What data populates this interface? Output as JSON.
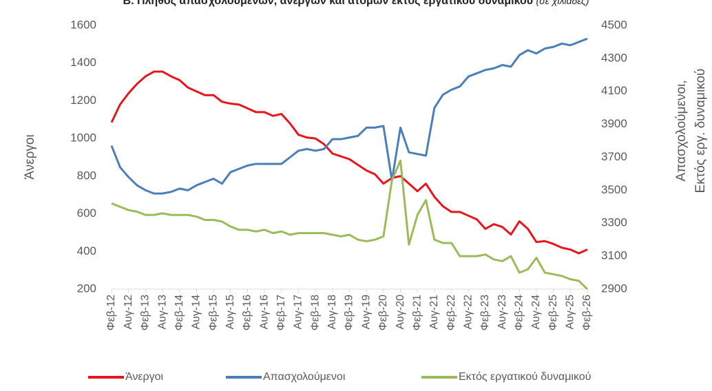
{
  "chart_data": {
    "type": "line",
    "title": "Β. Πλήθος απασχολούμενων, ανέργων και ατόμων εκτός εργατικού δυναμικού",
    "subtitle": "(σε χιλιάδες)",
    "ylabel": "Άνεργοι",
    "y2label": [
      "Απασχολούμενοι,",
      "Εκτός εργ. δυναμικού"
    ],
    "categories": [
      "Φεβ-12",
      null,
      "Αυγ-12",
      null,
      "Φεβ-13",
      null,
      "Αυγ-13",
      null,
      "Φεβ-14",
      null,
      "Αυγ-14",
      null,
      "Φεβ-15",
      null,
      "Αυγ-15",
      null,
      "Φεβ-16",
      null,
      "Αυγ-16",
      null,
      "Φεβ-17",
      null,
      "Αυγ-17",
      null,
      "Φεβ-18",
      null,
      "Αυγ-18",
      null,
      "Φεβ-19",
      null,
      "Αυγ-19",
      null,
      "Φεβ-20",
      null,
      "Αυγ-20",
      null,
      "Φεβ-21",
      null,
      "Αυγ-21",
      null,
      "Φεβ-22",
      null,
      "Αυγ-22",
      null,
      "Φεβ-23",
      null,
      "Αυγ-23",
      null,
      "Φεβ-24",
      null,
      "Αυγ-24",
      null,
      "Φεβ-25",
      null,
      "Αυγ-25",
      null,
      "Φεβ-26"
    ],
    "series": [
      {
        "name": "Άνεργοι",
        "color": "#e8141b",
        "axis": "y",
        "values": [
          1085,
          1180,
          1240,
          1290,
          1330,
          1355,
          1355,
          1330,
          1310,
          1270,
          1250,
          1230,
          1230,
          1195,
          1185,
          1180,
          1160,
          1140,
          1140,
          1120,
          1130,
          1080,
          1020,
          1005,
          1000,
          970,
          920,
          905,
          890,
          860,
          830,
          810,
          760,
          790,
          800,
          760,
          720,
          760,
          690,
          640,
          610,
          610,
          590,
          570,
          520,
          545,
          530,
          490,
          560,
          520,
          450,
          455,
          440,
          420,
          410,
          390,
          410
        ]
      },
      {
        "name": "Απασχολούμενοι",
        "color": "#4a7ebb",
        "axis": "y2",
        "values": [
          3770,
          3640,
          3580,
          3530,
          3500,
          3480,
          3480,
          3490,
          3510,
          3500,
          3530,
          3550,
          3570,
          3540,
          3610,
          3630,
          3650,
          3660,
          3660,
          3660,
          3660,
          3700,
          3740,
          3750,
          3740,
          3750,
          3810,
          3810,
          3820,
          3830,
          3880,
          3880,
          3890,
          3560,
          3880,
          3730,
          3720,
          3710,
          4000,
          4080,
          4110,
          4130,
          4190,
          4210,
          4230,
          4240,
          4260,
          4250,
          4320,
          4350,
          4330,
          4360,
          4370,
          4390,
          4380,
          4400,
          4420
        ]
      },
      {
        "name": "Εκτός εργατικού δυναμικού",
        "color": "#9bbb59",
        "axis": "y2",
        "values": [
          3420,
          3400,
          3380,
          3370,
          3350,
          3350,
          3360,
          3350,
          3350,
          3350,
          3340,
          3320,
          3320,
          3310,
          3280,
          3260,
          3260,
          3250,
          3260,
          3240,
          3250,
          3230,
          3240,
          3240,
          3240,
          3240,
          3230,
          3220,
          3230,
          3200,
          3190,
          3200,
          3220,
          3560,
          3680,
          3170,
          3350,
          3440,
          3200,
          3180,
          3180,
          3100,
          3100,
          3100,
          3110,
          3080,
          3070,
          3100,
          3000,
          3020,
          3090,
          3000,
          2990,
          2980,
          2960,
          2950,
          2900
        ]
      }
    ],
    "ylim": [
      200,
      1600
    ],
    "yticks": [
      200,
      400,
      600,
      800,
      1000,
      1200,
      1400,
      1600
    ],
    "y2lim": [
      2900,
      4500
    ],
    "y2ticks": [
      2900,
      3100,
      3300,
      3500,
      3700,
      3900,
      4100,
      4300,
      4500
    ],
    "grid": false,
    "legend": "bottom"
  }
}
